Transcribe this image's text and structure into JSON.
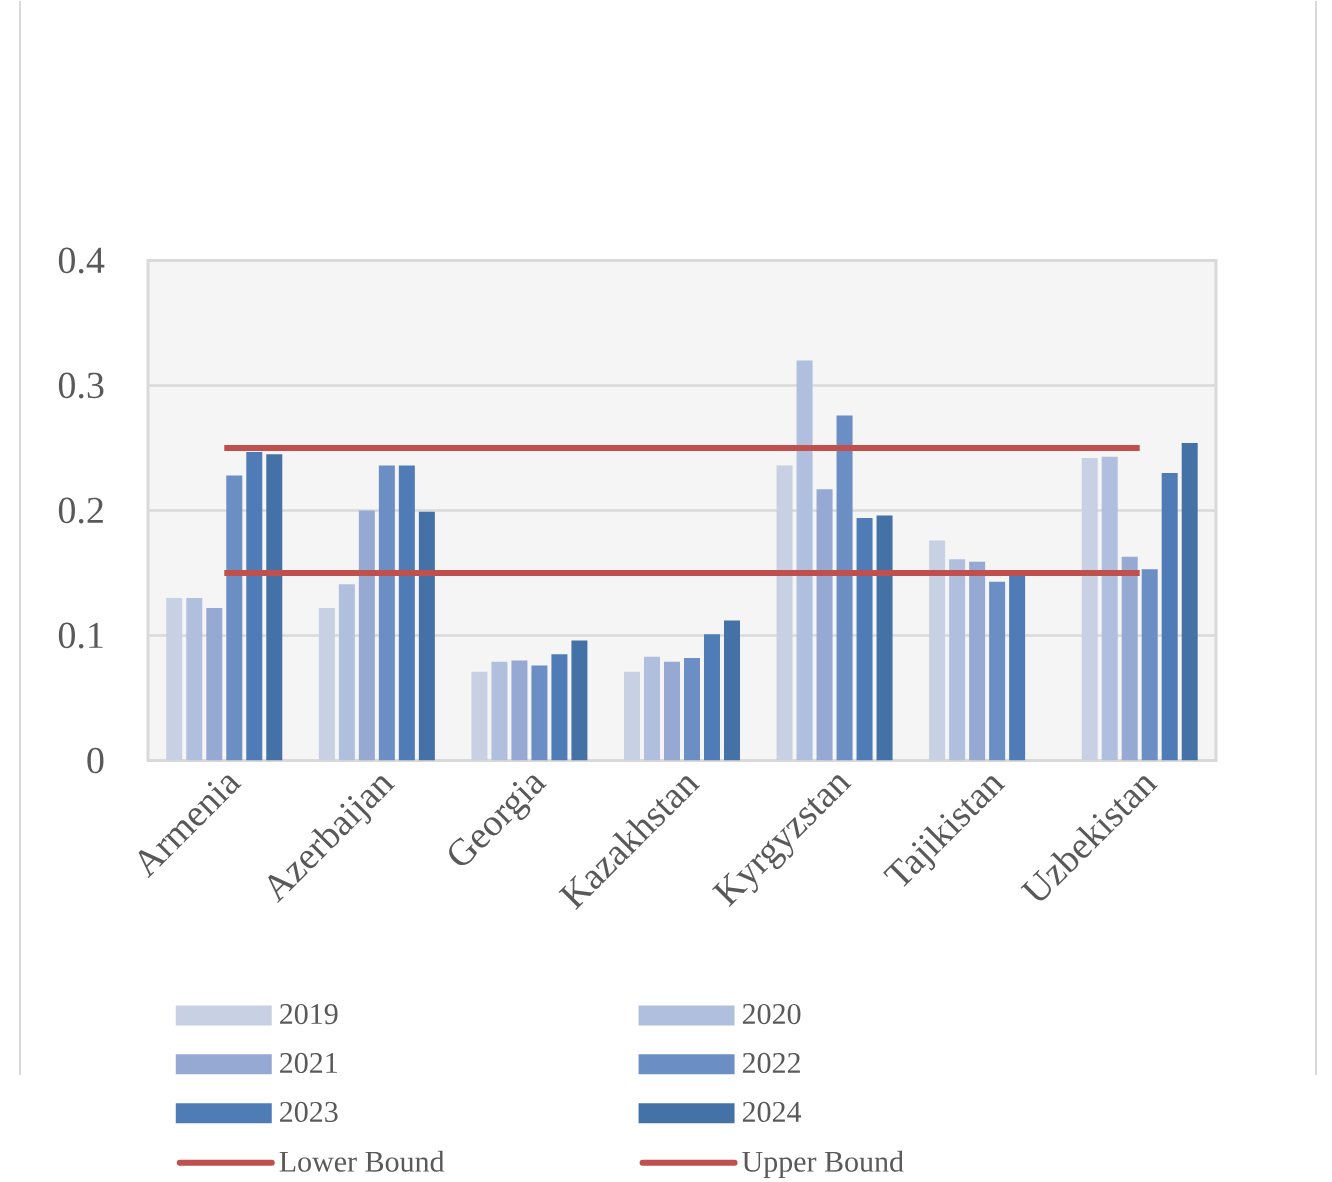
{
  "chart_data": {
    "type": "bar",
    "categories": [
      "Armenia",
      "Azerbaijan",
      "Georgia",
      "Kazakhstan",
      "Kyrgyzstan",
      "Tajikistan",
      "Uzbekistan"
    ],
    "series": [
      {
        "name": "2019",
        "color": "#c8d0e3",
        "values": [
          0.13,
          0.122,
          0.071,
          0.071,
          0.236,
          0.176,
          0.242
        ]
      },
      {
        "name": "2020",
        "color": "#afbfdd",
        "values": [
          0.13,
          0.141,
          0.079,
          0.083,
          0.32,
          0.161,
          0.243
        ]
      },
      {
        "name": "2021",
        "color": "#95a9d2",
        "values": [
          0.122,
          0.2,
          0.08,
          0.079,
          0.217,
          0.159,
          0.163
        ]
      },
      {
        "name": "2022",
        "color": "#6b8fc4",
        "values": [
          0.228,
          0.236,
          0.076,
          0.082,
          0.276,
          0.143,
          0.153
        ]
      },
      {
        "name": "2023",
        "color": "#4f7cb7",
        "values": [
          0.247,
          0.236,
          0.085,
          0.101,
          0.194,
          0.149,
          0.23
        ]
      },
      {
        "name": "2024",
        "color": "#4572a6",
        "values": [
          0.245,
          0.199,
          0.096,
          0.112,
          0.196,
          null,
          0.254
        ]
      },
      {
        "name": "Lower Bound",
        "type": "line",
        "color": "#c0504d",
        "values": [
          0.15,
          0.15,
          0.15,
          0.15,
          0.15,
          0.15,
          0.15
        ]
      },
      {
        "name": "Upper Bound",
        "type": "line",
        "color": "#c0504d",
        "values": [
          0.25,
          0.25,
          0.25,
          0.25,
          0.25,
          0.25,
          0.25
        ]
      }
    ],
    "ylim": [
      0,
      0.4
    ],
    "yticks": [
      0,
      0.1,
      0.2,
      0.3,
      0.4
    ],
    "grid": "y",
    "legend": "bottom"
  }
}
